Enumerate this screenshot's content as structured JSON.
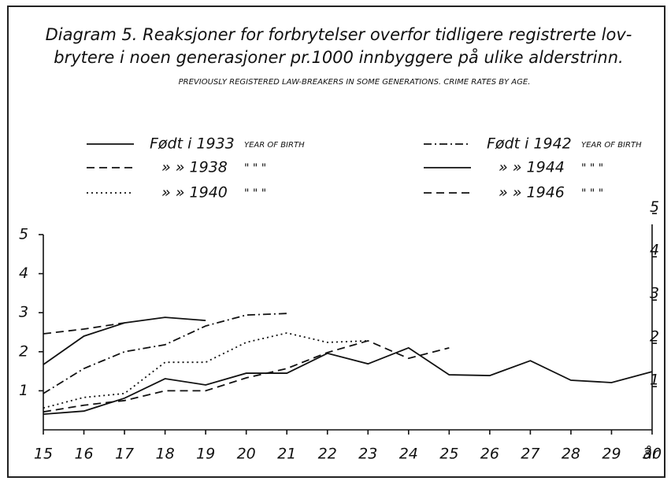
{
  "chart_data": {
    "type": "line",
    "title_lines": [
      "Diagram 5. Reaksjoner for forbrytelser overfor tidligere registrerte lov-",
      "brytere i noen  generasjoner pr.1000 innbyggere på ulike alderstrinn."
    ],
    "subtitle": "PREVIOUSLY REGISTERED LAW-BREAKERS IN SOME GENERATIONS. CRIME RATES BY AGE.",
    "x_label": "år",
    "x": [
      15,
      16,
      17,
      18,
      19,
      20,
      21,
      22,
      23,
      24,
      25,
      26,
      27,
      28,
      29,
      30
    ],
    "xlim": [
      15,
      30
    ],
    "xticks": [
      15,
      16,
      17,
      18,
      19,
      20,
      21,
      22,
      23,
      24,
      25,
      26,
      27,
      28,
      29,
      30
    ],
    "ylim": [
      0,
      5
    ],
    "yticks": [
      1,
      2,
      3,
      4,
      5
    ],
    "y2lim": [
      0,
      4.75
    ],
    "y2ticks": [
      1,
      2,
      3,
      4,
      5
    ],
    "series": [
      {
        "name": "Født i 1933",
        "legend_suffix": "YEAR OF BIRTH",
        "color": "#111111",
        "dash": "solid",
        "values": [
          1.67,
          2.4,
          2.74,
          2.88,
          2.8,
          null,
          null,
          null,
          null,
          null,
          null,
          null,
          null,
          null,
          null,
          null
        ]
      },
      {
        "name": "»  » 1938",
        "legend_suffix": "\"    \"    \"",
        "color": "#111111",
        "dash": "dashed",
        "values": [
          2.46,
          2.58,
          2.74,
          null,
          null,
          null,
          null,
          null,
          null,
          null,
          null,
          null,
          null,
          null,
          null,
          null
        ]
      },
      {
        "name": "»  » 1940",
        "legend_suffix": "\"    \"    \"",
        "color": "#111111",
        "dash": "dotted",
        "values": [
          0.56,
          0.83,
          0.93,
          1.73,
          1.73,
          2.24,
          2.48,
          2.24,
          2.28,
          null,
          null,
          null,
          null,
          null,
          null,
          null
        ]
      },
      {
        "name": "Født i 1942",
        "legend_suffix": "YEAR OF BIRTH",
        "color": "#111111",
        "dash": "dashdot",
        "values": [
          0.93,
          1.57,
          2.0,
          2.18,
          2.66,
          2.94,
          2.98,
          null,
          null,
          null,
          null,
          null,
          null,
          null,
          null,
          null
        ]
      },
      {
        "name": "»  » 1944",
        "legend_suffix": "\"    \"    \"",
        "color": "#111111",
        "dash": "solid",
        "values": [
          0.4,
          0.48,
          0.81,
          1.31,
          1.15,
          1.45,
          1.45,
          1.96,
          1.69,
          2.1,
          1.41,
          1.39,
          1.77,
          1.27,
          1.21,
          1.49
        ]
      },
      {
        "name": "»  » 1946",
        "legend_suffix": "\"    \"    \"",
        "color": "#111111",
        "dash": "dashed",
        "values": [
          0.46,
          0.63,
          0.75,
          1.0,
          1.0,
          1.33,
          1.57,
          1.98,
          2.28,
          1.83,
          2.1,
          null,
          null,
          null,
          null,
          null
        ]
      }
    ]
  }
}
